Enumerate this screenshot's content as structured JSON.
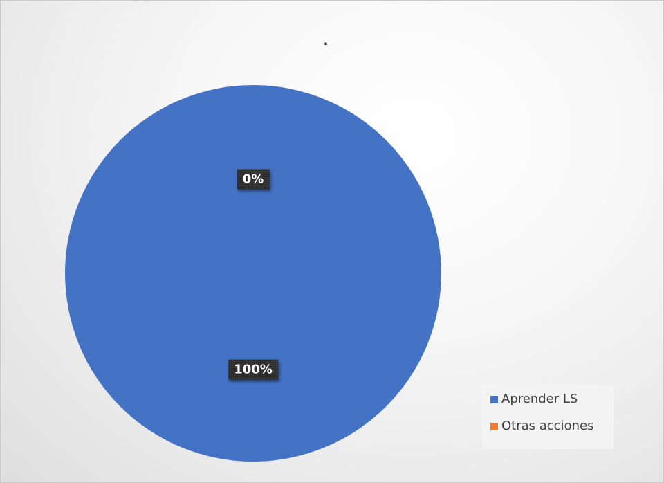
{
  "chart_data": {
    "type": "pie",
    "title": ".",
    "categories": [
      "Aprender LS",
      "Otras acciones"
    ],
    "values": [
      100,
      0
    ],
    "data_labels": [
      "100%",
      "0%"
    ],
    "colors": [
      "#4472c4",
      "#ed7d31"
    ],
    "legend_position": "bottom-right"
  },
  "legend": {
    "items": [
      {
        "label": "Aprender LS",
        "color": "#4472c4"
      },
      {
        "label": "Otras acciones",
        "color": "#ed7d31"
      }
    ]
  }
}
